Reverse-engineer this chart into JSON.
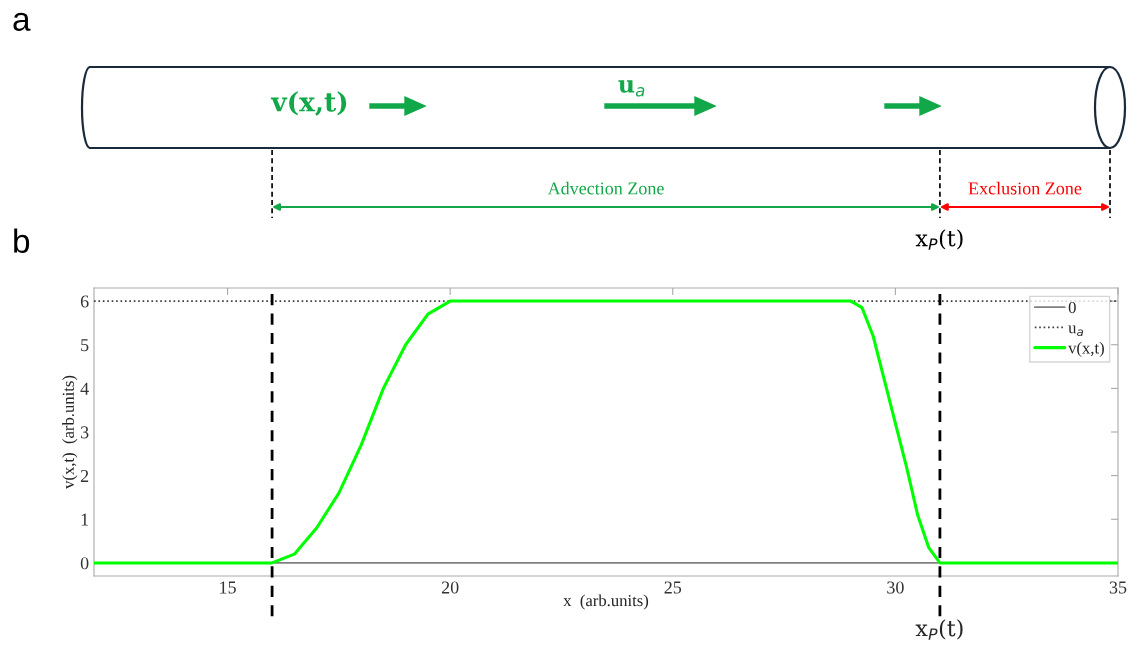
{
  "chart_data": {
    "type": "line",
    "xlabel": "x  (arb.units)",
    "ylabel": "v(x,t)  (arb.units)",
    "xlim": [
      12,
      35
    ],
    "xticks": [
      15,
      20,
      25,
      30,
      35
    ],
    "ylim": [
      -0.3,
      6.3
    ],
    "yticks": [
      0,
      1,
      2,
      3,
      4,
      5,
      6
    ],
    "grid": false,
    "legend": "top right",
    "marker": "none",
    "series": [
      {
        "name": "0",
        "color": "#808080",
        "line_style": "solid",
        "x": [
          12,
          35
        ],
        "values": [
          0,
          0
        ]
      },
      {
        "name": "u$_{a}$",
        "color": "#404040",
        "line_style": "dotted",
        "x": [
          12,
          35
        ],
        "values": [
          6,
          6
        ]
      },
      {
        "name": "v(x,t)",
        "color": "#00ff00",
        "line_style": "solid",
        "x": [
          12,
          16,
          16.5,
          17,
          17.5,
          18,
          18.5,
          19,
          19.5,
          20,
          29,
          29.25,
          29.5,
          29.75,
          30,
          30.25,
          30.5,
          30.75,
          31,
          35
        ],
        "values": [
          0,
          0,
          0.2,
          0.8,
          1.6,
          2.7,
          4.0,
          5.0,
          5.7,
          6,
          6,
          5.85,
          5.2,
          4.2,
          3.2,
          2.2,
          1.1,
          0.35,
          0,
          0
        ]
      }
    ],
    "ref_lines": [
      {
        "axis": "x",
        "value": 16,
        "color": "#000000",
        "line_style": "dashed"
      },
      {
        "axis": "x",
        "value": 31,
        "label": "x$_{P}$(t)",
        "color": "#000000",
        "line_style": "dashed"
      }
    ],
    "annotations": [
      "a",
      "b",
      "v(x,t)",
      "u$_{a}$",
      "Advection Zone",
      "Exclusion Zone",
      "x$_{P}$(t)"
    ]
  }
}
